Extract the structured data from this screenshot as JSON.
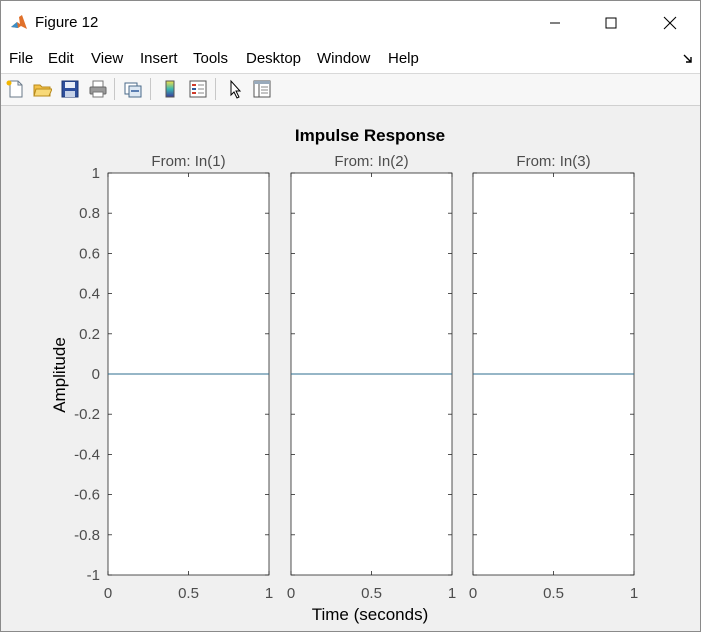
{
  "window": {
    "title": "Figure 12",
    "minimize_label": "—",
    "maximize_label": "☐",
    "close_label": "✕"
  },
  "menu": {
    "items": [
      "File",
      "Edit",
      "View",
      "Insert",
      "Tools",
      "Desktop",
      "Window",
      "Help"
    ]
  },
  "toolbar": {
    "buttons": [
      "new-figure-icon",
      "open-file-icon",
      "save-figure-icon",
      "print-figure-icon",
      "link-plot-icon",
      "insert-colorbar-icon",
      "insert-legend-icon",
      "edit-plot-icon",
      "property-inspector-icon"
    ]
  },
  "colors": {
    "line": "#2c6e8f",
    "axes_text": "#4d4d4d",
    "grid_box": "#262626"
  },
  "chart_data": {
    "type": "line",
    "title": "Impulse Response",
    "xlabel": "Time (seconds)",
    "ylabel": "Amplitude",
    "ylim": [
      -1,
      1
    ],
    "xlim": [
      0,
      1
    ],
    "yticks": [
      "1",
      "0.8",
      "0.6",
      "0.4",
      "0.2",
      "0",
      "-0.2",
      "-0.4",
      "-0.6",
      "-0.8",
      "-1"
    ],
    "xticks": [
      "0",
      "0.5",
      "1"
    ],
    "subplots": [
      {
        "title": "From: In(1)",
        "series": [
          {
            "x": [
              0,
              1
            ],
            "y": [
              0,
              0
            ]
          }
        ]
      },
      {
        "title": "From: In(2)",
        "series": [
          {
            "x": [
              0,
              1
            ],
            "y": [
              0,
              0
            ]
          }
        ]
      },
      {
        "title": "From: In(3)",
        "series": [
          {
            "x": [
              0,
              1
            ],
            "y": [
              0,
              0
            ]
          }
        ]
      }
    ]
  }
}
